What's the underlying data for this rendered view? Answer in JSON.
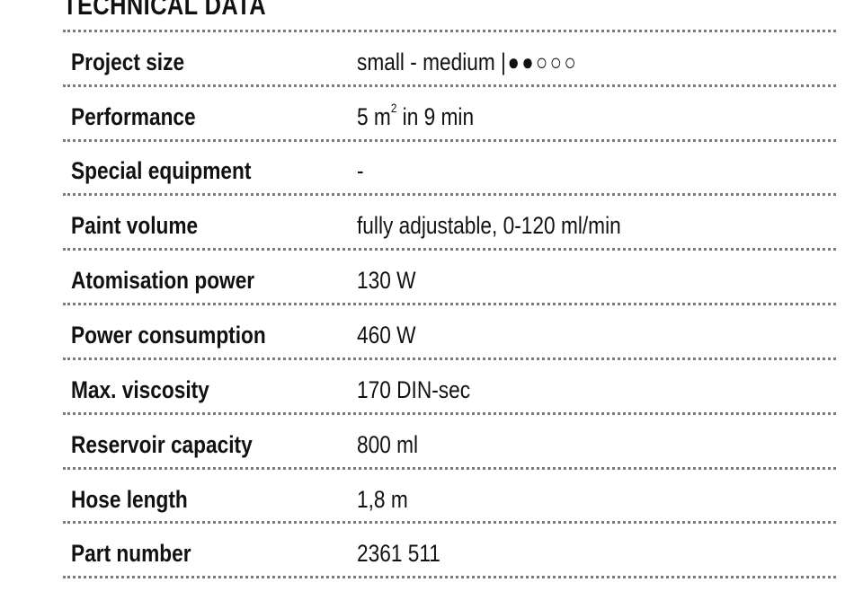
{
  "title": "TECHNICAL DATA",
  "rows": [
    {
      "label": "Project size",
      "value": "small - medium |",
      "rating": "●●○○○",
      "rating_value": 2,
      "rating_max": 5
    },
    {
      "label": "Performance",
      "value_main": "5 m",
      "value_sup": "2",
      "value_tail": " in 9 min"
    },
    {
      "label": "Special equipment",
      "value": "-"
    },
    {
      "label": "Paint volume",
      "value": "fully adjustable, 0-120 ml/min"
    },
    {
      "label": "Atomisation power",
      "value": "130 W"
    },
    {
      "label": "Power consumption",
      "value": "460 W"
    },
    {
      "label": "Max. viscosity",
      "value": "170 DIN-sec"
    },
    {
      "label": "Reservoir capacity",
      "value": "800 ml"
    },
    {
      "label": "Hose length",
      "value": "1,8 m"
    },
    {
      "label": "Part number",
      "value": "2361 511"
    }
  ]
}
